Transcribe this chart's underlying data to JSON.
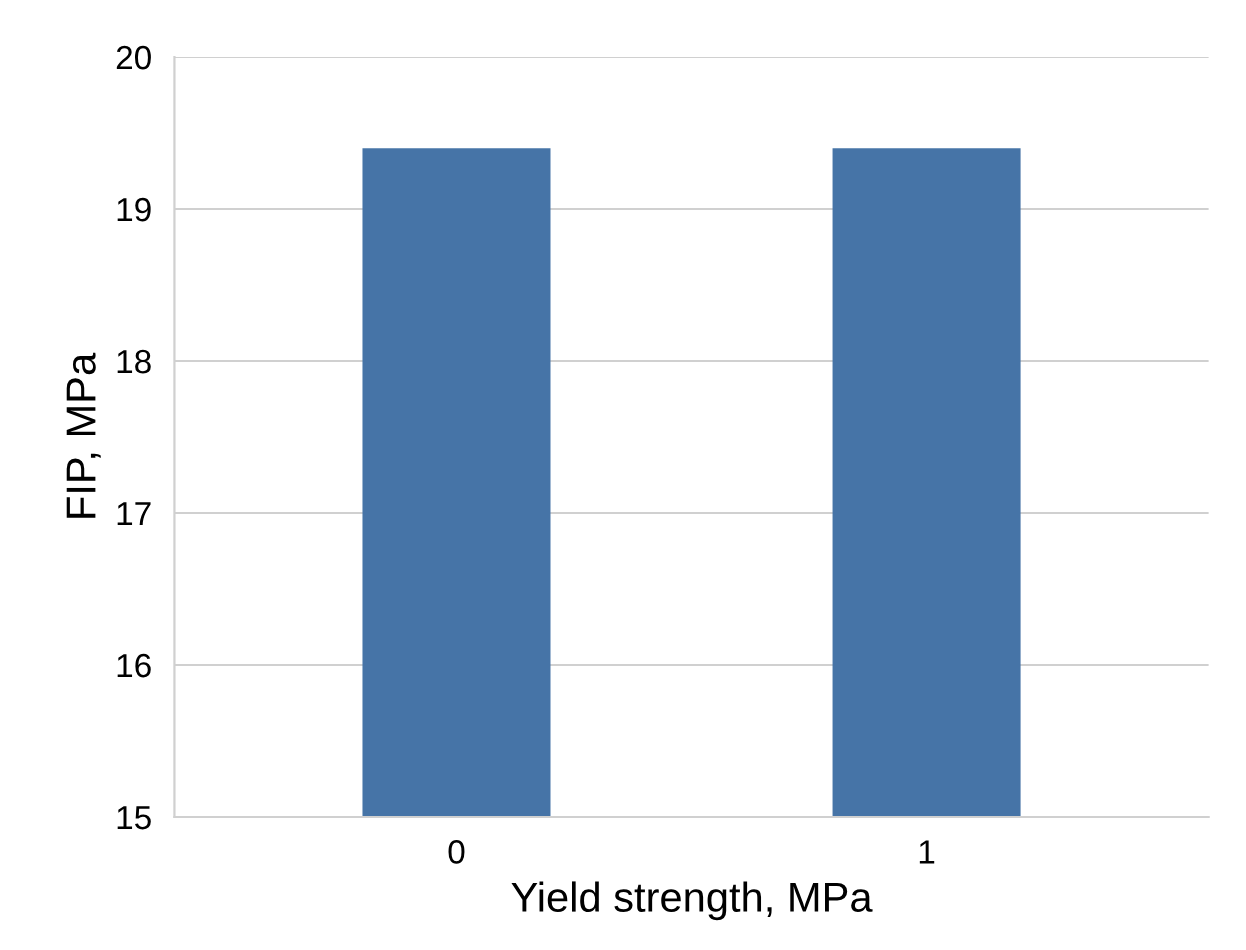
{
  "chart_data": {
    "type": "bar",
    "xlabel": "Yield strength, MPa",
    "ylabel": "FIP, MPa",
    "categories": [
      "0",
      "1"
    ],
    "values": [
      19.4,
      19.4
    ],
    "color": "#4674a7",
    "ylim": [
      15,
      20
    ],
    "yticks": [
      15,
      16,
      17,
      18,
      19,
      20
    ],
    "grid": "y"
  }
}
